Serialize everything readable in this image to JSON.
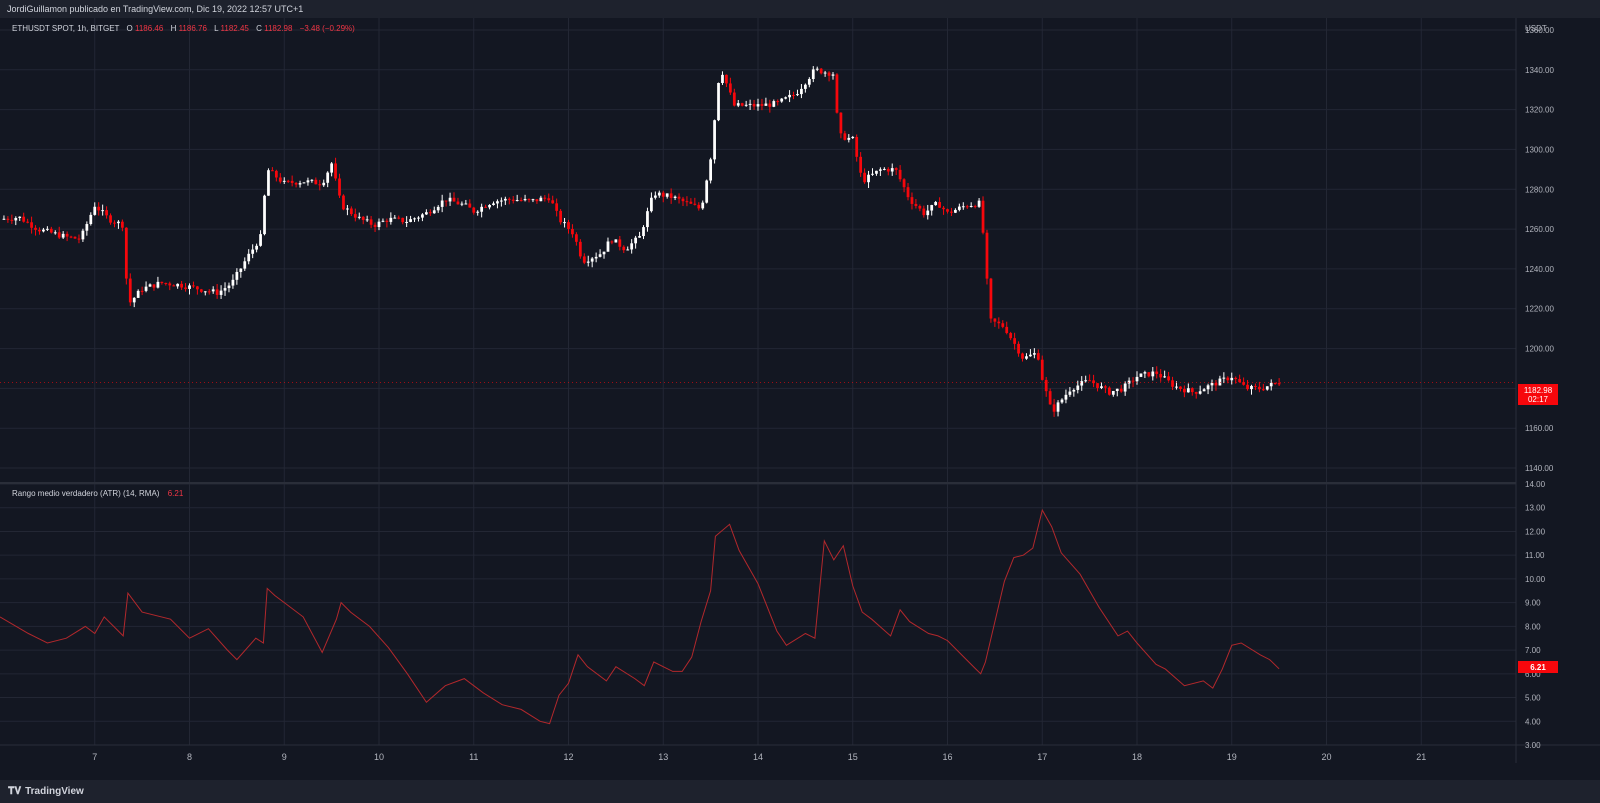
{
  "header": {
    "published_text": "JordiGuillamon publicado en TradingView.com, Dic 19, 2022 12:57 UTC+1"
  },
  "footer": {
    "logo_text": "TradingView"
  },
  "colors": {
    "background": "#131722",
    "grid": "#232734",
    "up_candle": "#ffffff",
    "down_candle": "#f7070c",
    "atr_line": "#b2282c",
    "price_badge": "#f23645",
    "axis_text": "#b2b5be"
  },
  "chart_data": [
    {
      "type": "candlestick",
      "symbol_legend": "ETHUSDT SPOT, 1h, BITGET",
      "ohlc_legend": {
        "o_label": "O",
        "o_value": "1186.46",
        "h_label": "H",
        "h_value": "1186.76",
        "l_label": "L",
        "l_value": "1182.45",
        "c_label": "C",
        "c_value": "1182.98",
        "change": "−3.48 (−0.29%)"
      },
      "axis_unit": "USDT",
      "y_ticks": [
        "1360.00",
        "1340.00",
        "1320.00",
        "1300.00",
        "1280.00",
        "1260.00",
        "1240.00",
        "1220.00",
        "1200.00",
        "1180.00",
        "1160.00",
        "1140.00"
      ],
      "ylim": [
        1133,
        1366
      ],
      "last_price_badge": "1182.98",
      "countdown_badge": "02:17",
      "close_path": [
        [
          6.0,
          1265
        ],
        [
          6.2,
          1266
        ],
        [
          6.4,
          1260
        ],
        [
          6.55,
          1258
        ],
        [
          6.7,
          1256
        ],
        [
          6.85,
          1255
        ],
        [
          7.0,
          1272
        ],
        [
          7.15,
          1265
        ],
        [
          7.3,
          1262
        ],
        [
          7.35,
          1222
        ],
        [
          7.5,
          1230
        ],
        [
          7.7,
          1233
        ],
        [
          7.9,
          1232
        ],
        [
          8.1,
          1230
        ],
        [
          8.3,
          1228
        ],
        [
          8.45,
          1233
        ],
        [
          8.6,
          1245
        ],
        [
          8.75,
          1256
        ],
        [
          8.82,
          1290
        ],
        [
          9.0,
          1283
        ],
        [
          9.2,
          1284
        ],
        [
          9.4,
          1283
        ],
        [
          9.5,
          1293
        ],
        [
          9.6,
          1272
        ],
        [
          9.8,
          1265
        ],
        [
          9.95,
          1262
        ],
        [
          10.1,
          1265
        ],
        [
          10.3,
          1264
        ],
        [
          10.5,
          1268
        ],
        [
          10.7,
          1275
        ],
        [
          10.9,
          1272
        ],
        [
          11.0,
          1269
        ],
        [
          11.2,
          1274
        ],
        [
          11.4,
          1275
        ],
        [
          11.6,
          1274
        ],
        [
          11.8,
          1276
        ],
        [
          11.9,
          1265
        ],
        [
          12.05,
          1258
        ],
        [
          12.15,
          1244
        ],
        [
          12.35,
          1248
        ],
        [
          12.45,
          1255
        ],
        [
          12.6,
          1250
        ],
        [
          12.75,
          1256
        ],
        [
          12.9,
          1278
        ],
        [
          13.1,
          1276
        ],
        [
          13.3,
          1272
        ],
        [
          13.4,
          1270
        ],
        [
          13.5,
          1296
        ],
        [
          13.6,
          1342
        ],
        [
          13.75,
          1322
        ],
        [
          14.0,
          1322
        ],
        [
          14.2,
          1323
        ],
        [
          14.4,
          1328
        ],
        [
          14.6,
          1340
        ],
        [
          14.8,
          1338
        ],
        [
          14.85,
          1307
        ],
        [
          15.0,
          1305
        ],
        [
          15.1,
          1284
        ],
        [
          15.3,
          1290
        ],
        [
          15.45,
          1290
        ],
        [
          15.6,
          1275
        ],
        [
          15.75,
          1268
        ],
        [
          15.9,
          1273
        ],
        [
          16.0,
          1268
        ],
        [
          16.2,
          1272
        ],
        [
          16.35,
          1273
        ],
        [
          16.45,
          1214
        ],
        [
          16.6,
          1211
        ],
        [
          16.8,
          1195
        ],
        [
          16.95,
          1198
        ],
        [
          17.0,
          1185
        ],
        [
          17.1,
          1168
        ],
        [
          17.3,
          1180
        ],
        [
          17.5,
          1184
        ],
        [
          17.7,
          1178
        ],
        [
          17.85,
          1180
        ],
        [
          18.0,
          1186
        ],
        [
          18.2,
          1188
        ],
        [
          18.4,
          1181
        ],
        [
          18.6,
          1178
        ],
        [
          18.8,
          1182
        ],
        [
          19.0,
          1186
        ],
        [
          19.15,
          1180
        ],
        [
          19.3,
          1180
        ],
        [
          19.5,
          1183
        ]
      ]
    },
    {
      "type": "line",
      "indicator_legend": "Rango medio verdadero (ATR) (14, RMA)",
      "indicator_value": "6.21",
      "y_ticks": [
        "14.00",
        "13.00",
        "12.00",
        "11.00",
        "10.00",
        "9.00",
        "8.00",
        "7.00",
        "6.00",
        "5.00",
        "4.00",
        "3.00"
      ],
      "ylim": [
        3,
        14
      ],
      "x": [
        6.0,
        6.3,
        6.5,
        6.7,
        6.9,
        7.0,
        7.1,
        7.3,
        7.35,
        7.5,
        7.8,
        8.0,
        8.2,
        8.4,
        8.5,
        8.7,
        8.78,
        8.82,
        8.9,
        9.0,
        9.2,
        9.4,
        9.55,
        9.6,
        9.7,
        9.9,
        10.1,
        10.3,
        10.5,
        10.7,
        10.9,
        11.1,
        11.3,
        11.5,
        11.7,
        11.8,
        11.9,
        12.0,
        12.1,
        12.2,
        12.4,
        12.5,
        12.7,
        12.8,
        12.9,
        13.1,
        13.2,
        13.3,
        13.4,
        13.5,
        13.55,
        13.7,
        13.8,
        14.0,
        14.2,
        14.3,
        14.5,
        14.6,
        14.7,
        14.8,
        14.9,
        15.0,
        15.1,
        15.2,
        15.4,
        15.5,
        15.6,
        15.8,
        15.9,
        16.0,
        16.2,
        16.3,
        16.35,
        16.4,
        16.6,
        16.7,
        16.8,
        16.9,
        17.0,
        17.1,
        17.2,
        17.4,
        17.6,
        17.8,
        17.9,
        18.0,
        18.2,
        18.3,
        18.5,
        18.7,
        18.8,
        18.9,
        19.0,
        19.1,
        19.3,
        19.4,
        19.5
      ],
      "y": [
        8.4,
        7.7,
        7.3,
        7.5,
        8.0,
        7.7,
        8.4,
        7.6,
        9.4,
        8.6,
        8.3,
        7.5,
        7.9,
        7.0,
        6.6,
        7.5,
        7.3,
        9.6,
        9.3,
        9.0,
        8.4,
        6.9,
        8.3,
        9.0,
        8.6,
        8.0,
        7.1,
        6.0,
        4.8,
        5.5,
        5.8,
        5.2,
        4.7,
        4.5,
        4.0,
        3.9,
        5.1,
        5.6,
        6.8,
        6.3,
        5.7,
        6.3,
        5.8,
        5.5,
        6.5,
        6.1,
        6.1,
        6.7,
        8.2,
        9.5,
        11.8,
        12.3,
        11.2,
        9.8,
        7.8,
        7.2,
        7.7,
        7.5,
        11.6,
        10.8,
        11.4,
        9.7,
        8.6,
        8.3,
        7.6,
        8.7,
        8.2,
        7.7,
        7.6,
        7.4,
        6.6,
        6.2,
        6.0,
        6.5,
        9.9,
        10.9,
        11.0,
        11.3,
        12.9,
        12.2,
        11.1,
        10.2,
        8.8,
        7.6,
        7.8,
        7.3,
        6.4,
        6.2,
        5.5,
        5.7,
        5.4,
        6.2,
        7.2,
        7.3,
        6.8,
        6.6,
        6.21
      ],
      "last_value_badge": "6.21"
    }
  ],
  "x_axis": {
    "ticks": [
      "7",
      "8",
      "9",
      "10",
      "11",
      "12",
      "13",
      "14",
      "15",
      "16",
      "17",
      "18",
      "19",
      "20",
      "21"
    ],
    "tick_values": [
      7,
      8,
      9,
      10,
      11,
      12,
      13,
      14,
      15,
      16,
      17,
      18,
      19,
      20,
      21
    ],
    "xlim": [
      6.0,
      22.0
    ]
  }
}
